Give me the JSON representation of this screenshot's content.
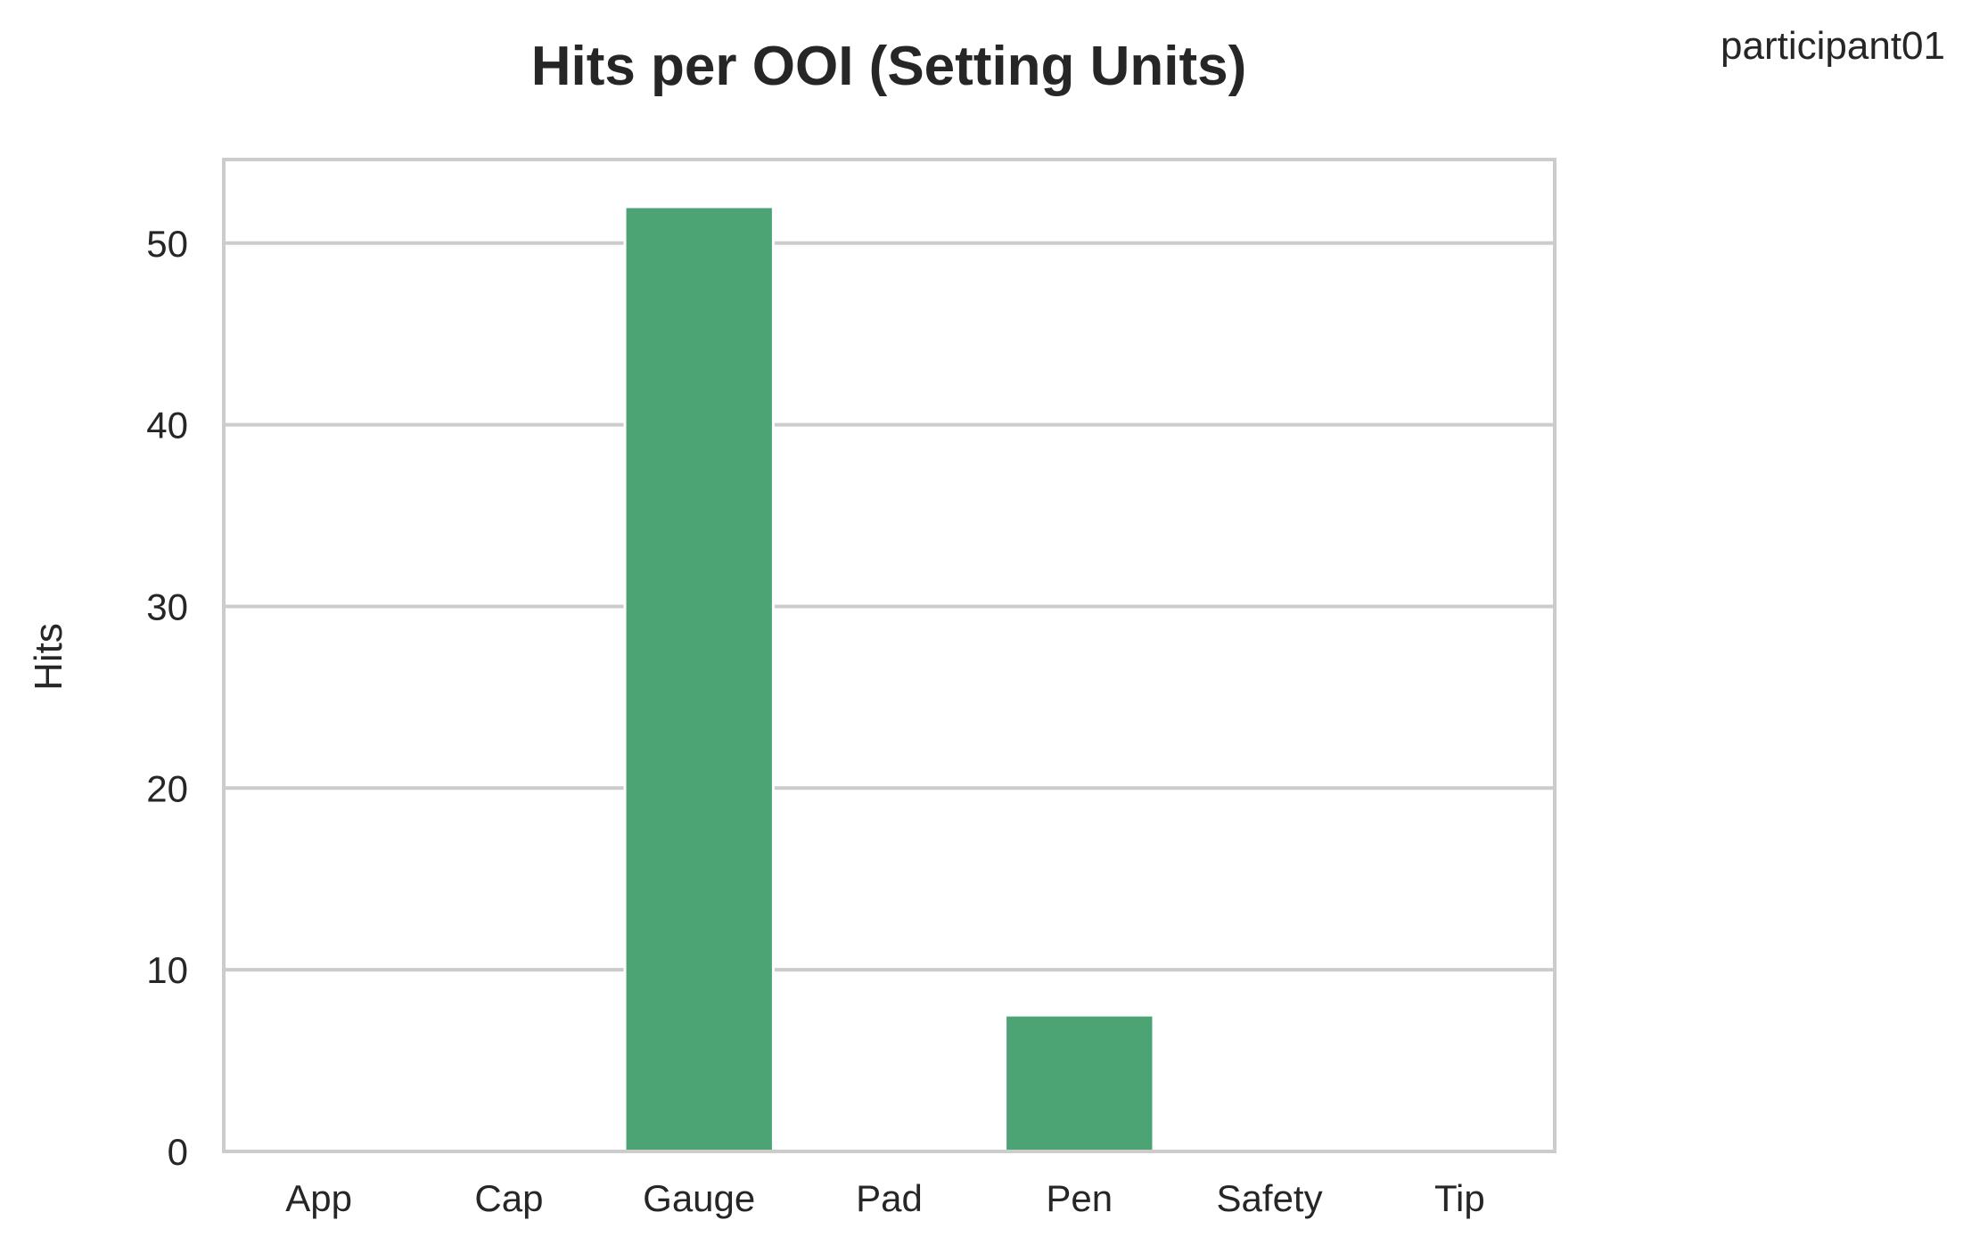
{
  "chart_data": {
    "type": "bar",
    "title": "Hits per OOI (Setting Units)",
    "corner_note": "participant01",
    "xlabel": "",
    "ylabel": "Hits",
    "categories": [
      "App",
      "Cap",
      "Gauge",
      "Pad",
      "Pen",
      "Safety",
      "Tip"
    ],
    "values": [
      0,
      0,
      52,
      0,
      7.5,
      0,
      0
    ],
    "ylim": [
      0,
      54.6
    ],
    "yticks": [
      0,
      10,
      20,
      30,
      40,
      50
    ],
    "grid": "horizontal",
    "bar_color": "#4ca373",
    "grid_color": "#cccccc",
    "frame_color": "#cccccc"
  }
}
